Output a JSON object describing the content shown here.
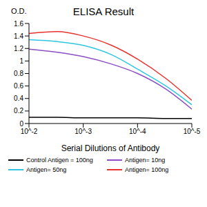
{
  "chart_data": {
    "type": "line",
    "title": "ELISA Result",
    "y_label": "O.D.",
    "x_label": "Serial Dilutions of Antibody",
    "log": "x",
    "x": [
      0.01,
      0.003,
      0.001,
      0.0003,
      0.0001,
      3e-05,
      1e-05
    ],
    "xlim": [
      0.01,
      1e-05
    ],
    "xticks": [
      {
        "value": 0.01,
        "label": "10^-2"
      },
      {
        "value": 0.001,
        "label": "10^-3"
      },
      {
        "value": 0.0001,
        "label": "10^-4"
      },
      {
        "value": 1e-05,
        "label": "10^-5"
      }
    ],
    "ylim": [
      0,
      1.6
    ],
    "yticks": [
      0,
      0.2,
      0.4,
      0.6,
      0.8,
      1,
      1.2,
      1.4,
      1.6
    ],
    "grid": false,
    "legend": "bottom",
    "series": [
      {
        "name": "Control Antigen = 100ng",
        "color": "#000000",
        "values": [
          0.1,
          0.1,
          0.09,
          0.09,
          0.09,
          0.08,
          0.08
        ]
      },
      {
        "name": "Antigen= 10ng",
        "color": "#8b4fc4",
        "values": [
          1.19,
          1.14,
          1.07,
          0.95,
          0.8,
          0.55,
          0.23
        ]
      },
      {
        "name": "Antigen= 50ng",
        "color": "#2ec6e0",
        "values": [
          1.34,
          1.31,
          1.25,
          1.1,
          0.87,
          0.6,
          0.3
        ]
      },
      {
        "name": "Antigen= 100ng",
        "color": "#e8322e",
        "values": [
          1.44,
          1.47,
          1.4,
          1.25,
          1.03,
          0.72,
          0.37
        ]
      }
    ]
  }
}
